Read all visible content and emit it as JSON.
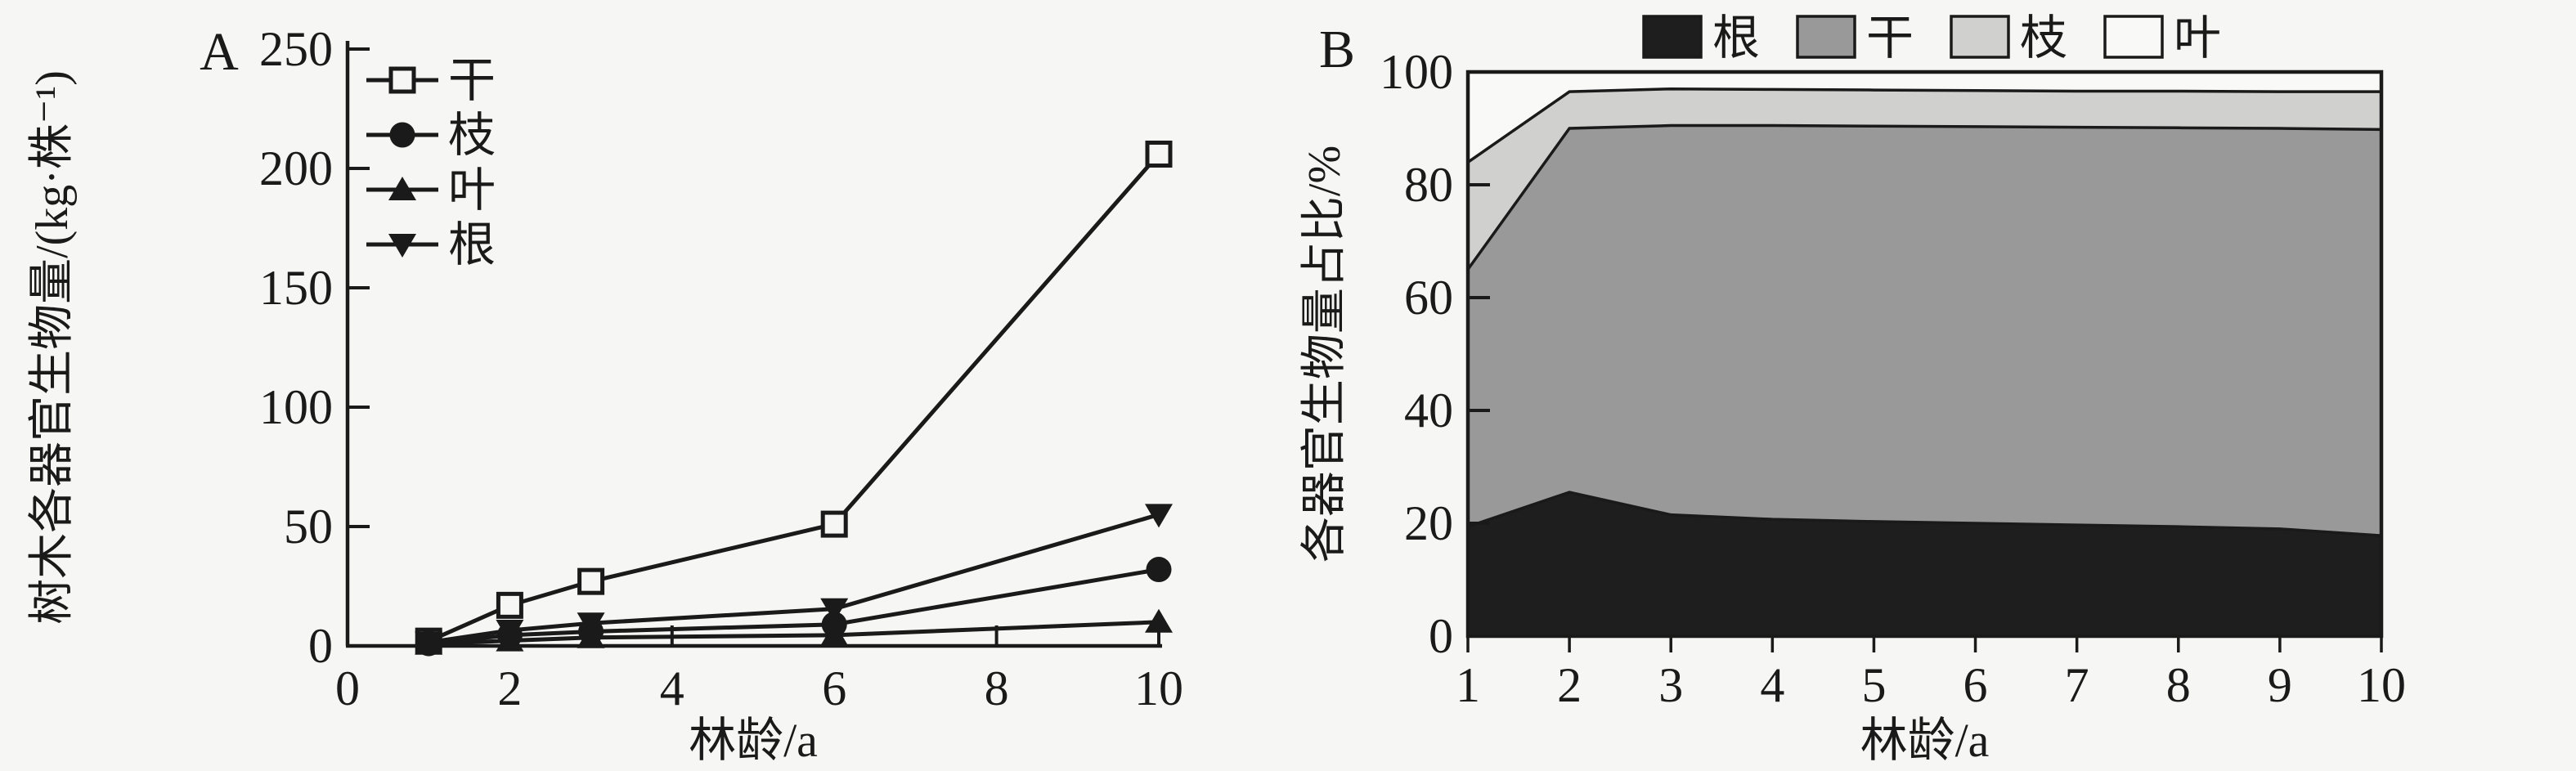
{
  "figure": {
    "background": "#f6f6f4",
    "ink": "#1a1a1a",
    "area_colors": {
      "root_black": "#1e1e1e",
      "trunk_gray": "#999999",
      "branch_lightgray": "#d0d0cf",
      "leaf_white": "#f9f9f8"
    }
  },
  "chart_data": [
    {
      "type": "line",
      "panel_label": "A",
      "xlabel": "林龄/a",
      "ylabel": "树木各器官生物量/(kg·株⁻¹)",
      "xlim": [
        0,
        10
      ],
      "ylim": [
        0,
        250
      ],
      "x_ticks": [
        0,
        2,
        4,
        6,
        8,
        10
      ],
      "y_ticks": [
        0,
        50,
        100,
        150,
        200,
        250
      ],
      "grid": "off",
      "legend_position": "inside-top-left",
      "series": [
        {
          "name": "干",
          "marker": "open-square",
          "x": [
            1,
            2,
            3,
            6,
            10
          ],
          "y": [
            2,
            17,
            27,
            51,
            206
          ]
        },
        {
          "name": "枝",
          "marker": "filled-circle",
          "x": [
            1,
            2,
            3,
            6,
            10
          ],
          "y": [
            1,
            4.5,
            6,
            9,
            32
          ]
        },
        {
          "name": "叶",
          "marker": "filled-triangle-up",
          "x": [
            1,
            2,
            3,
            6,
            10
          ],
          "y": [
            0.8,
            2.2,
            3.5,
            4.5,
            10
          ]
        },
        {
          "name": "根",
          "marker": "filled-triangle-down",
          "x": [
            1,
            2,
            3,
            6,
            10
          ],
          "y": [
            1.5,
            6.5,
            9.5,
            15.5,
            55
          ]
        }
      ]
    },
    {
      "type": "area",
      "stacked": true,
      "unit": "%",
      "panel_label": "B",
      "xlabel": "林龄/a",
      "ylabel": "各器官生物量占比/%",
      "xlim": [
        1,
        10
      ],
      "ylim": [
        0,
        100
      ],
      "x_ticks": [
        1,
        2,
        3,
        4,
        5,
        6,
        7,
        8,
        9,
        10
      ],
      "y_ticks": [
        0,
        20,
        40,
        60,
        80,
        100
      ],
      "grid": "off",
      "legend_position": "outside-top-center",
      "categories": [
        1,
        2,
        3,
        4,
        5,
        6,
        7,
        8,
        9,
        10
      ],
      "series": [
        {
          "name": "根",
          "color": "#1e1e1e",
          "values": [
            19.4,
            25.5,
            21.5,
            20.7,
            20.3,
            20.0,
            19.7,
            19.4,
            19.0,
            17.8
          ]
        },
        {
          "name": "干",
          "color": "#999999",
          "values": [
            45.6,
            64.5,
            69.0,
            69.8,
            70.1,
            70.3,
            70.5,
            70.7,
            71.0,
            72.0
          ]
        },
        {
          "name": "枝",
          "color": "#d0d0cf",
          "values": [
            19.0,
            6.5,
            6.5,
            6.4,
            6.4,
            6.4,
            6.4,
            6.5,
            6.5,
            6.7
          ]
        },
        {
          "name": "叶",
          "color": "#f9f9f8",
          "values": [
            16.0,
            3.5,
            3.0,
            3.1,
            3.2,
            3.3,
            3.4,
            3.4,
            3.5,
            3.5
          ]
        }
      ]
    }
  ]
}
